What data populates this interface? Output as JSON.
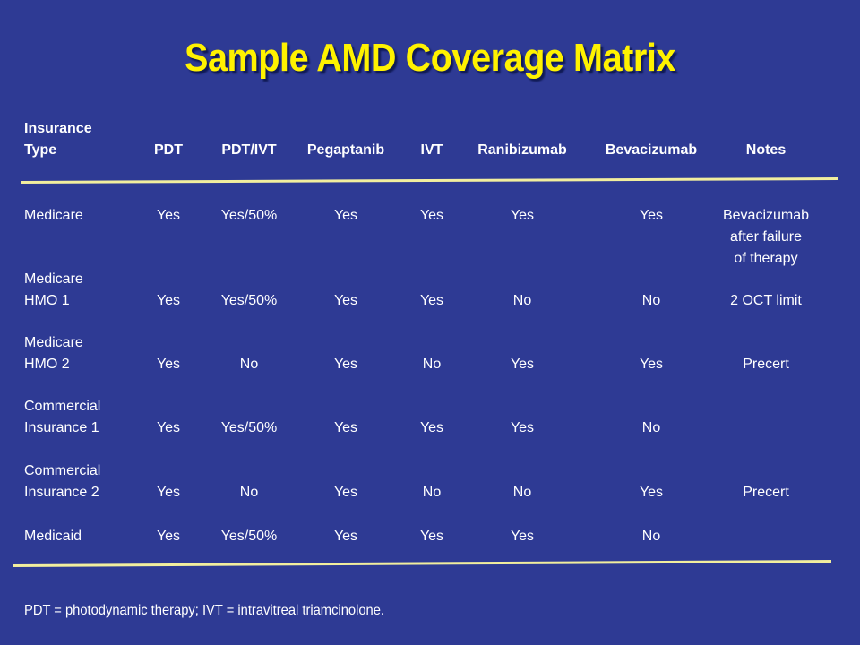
{
  "title": "Sample AMD Coverage Matrix",
  "colors": {
    "background": "#2E3A94",
    "title": "#FFF200",
    "text": "#FFFFFF",
    "rule": "#F2EE9E"
  },
  "table": {
    "headers": {
      "type_line1": "Insurance",
      "type_line2": "Type",
      "pdt": "PDT",
      "pdt_ivt": "PDT/IVT",
      "pegaptanib": "Pegaptanib",
      "ivt": "IVT",
      "ranibizumab": "Ranibizumab",
      "bevacizumab": "Bevacizumab",
      "notes": "Notes"
    },
    "rows": [
      {
        "type_line1": "",
        "type_line2": "Medicare",
        "pdt": "Yes",
        "pdt_ivt": "Yes/50%",
        "pegaptanib": "Yes",
        "ivt": "Yes",
        "ranibizumab": "Yes",
        "bevacizumab": "Yes",
        "notes_line1": "Bevacizumab",
        "notes_line2": "after failure",
        "notes_line3": "of therapy"
      },
      {
        "type_line1": "Medicare",
        "type_line2": "HMO 1",
        "pdt": "Yes",
        "pdt_ivt": "Yes/50%",
        "pegaptanib": "Yes",
        "ivt": "Yes",
        "ranibizumab": "No",
        "bevacizumab": "No",
        "notes_line1": "2 OCT limit"
      },
      {
        "type_line1": "Medicare",
        "type_line2": "HMO 2",
        "pdt": "Yes",
        "pdt_ivt": "No",
        "pegaptanib": "Yes",
        "ivt": "No",
        "ranibizumab": "Yes",
        "bevacizumab": "Yes",
        "notes_line1": "Precert"
      },
      {
        "type_line1": "Commercial",
        "type_line2": "Insurance 1",
        "pdt": "Yes",
        "pdt_ivt": "Yes/50%",
        "pegaptanib": "Yes",
        "ivt": "Yes",
        "ranibizumab": "Yes",
        "bevacizumab": "No",
        "notes_line1": ""
      },
      {
        "type_line1": "Commercial",
        "type_line2": "Insurance 2",
        "pdt": "Yes",
        "pdt_ivt": "No",
        "pegaptanib": "Yes",
        "ivt": "No",
        "ranibizumab": "No",
        "bevacizumab": "Yes",
        "notes_line1": "Precert"
      },
      {
        "type_line1": "",
        "type_line2": "Medicaid",
        "pdt": "Yes",
        "pdt_ivt": "Yes/50%",
        "pegaptanib": "Yes",
        "ivt": "Yes",
        "ranibizumab": "Yes",
        "bevacizumab": "No",
        "notes_line1": ""
      }
    ]
  },
  "footnote": "PDT = photodynamic therapy; IVT = intravitreal triamcinolone."
}
